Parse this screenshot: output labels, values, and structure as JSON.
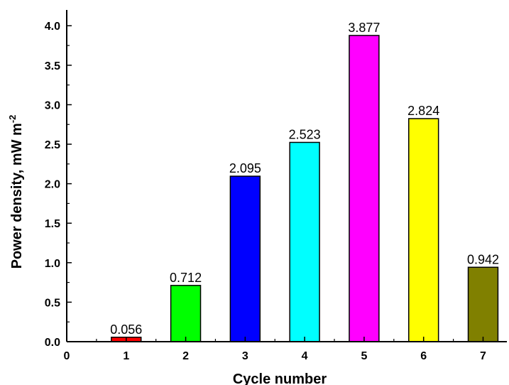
{
  "chart_data": {
    "type": "bar",
    "title": "",
    "xlabel": "Cycle number",
    "ylabel_main": "Power density, mW m",
    "ylabel_sup": "-2",
    "x_ticks": [
      "0",
      "1",
      "2",
      "3",
      "4",
      "5",
      "6",
      "7"
    ],
    "y_ticks": [
      "0.0",
      "0.5",
      "1.0",
      "1.5",
      "2.0",
      "2.5",
      "3.0",
      "3.5",
      "4.0"
    ],
    "xlim": [
      0,
      7.4
    ],
    "ylim": [
      0,
      4.2
    ],
    "grid": false,
    "legend": "none",
    "categories": [
      "1",
      "2",
      "3",
      "4",
      "5",
      "6",
      "7"
    ],
    "values": [
      0.056,
      0.712,
      2.095,
      2.523,
      3.877,
      2.824,
      0.942
    ],
    "data_labels": [
      "0.056",
      "0.712",
      "2.095",
      "2.523",
      "3.877",
      "2.824",
      "0.942"
    ],
    "colors": [
      "#ff0000",
      "#00ff00",
      "#0000ff",
      "#00ffff",
      "#ff00ff",
      "#ffff00",
      "#808000"
    ]
  }
}
